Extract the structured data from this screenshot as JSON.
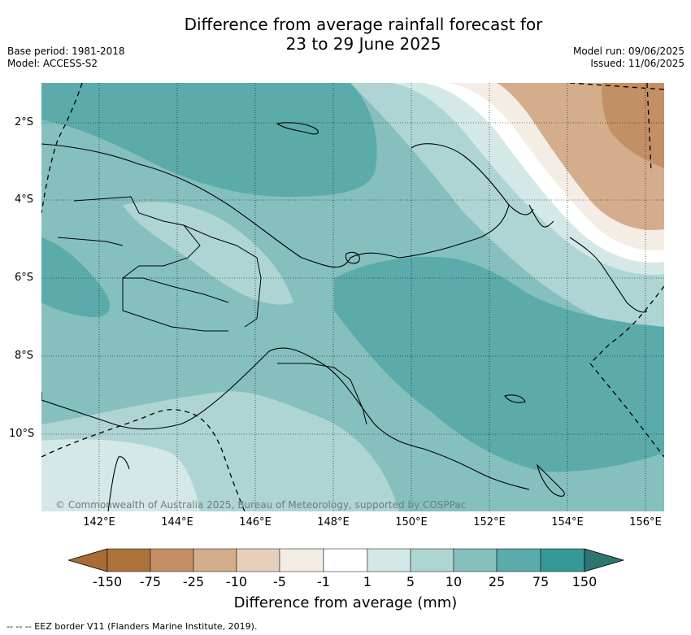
{
  "title_line1": "Difference from average rainfall forecast for",
  "title_line2": "23 to 29 June 2025",
  "base_period": "Base period: 1981-2018",
  "model": "Model: ACCESS-S2",
  "model_run": "Model run: 09/06/2025",
  "issued": "Issued: 11/06/2025",
  "lat_labels": [
    "2°S",
    "4°S",
    "6°S",
    "8°S",
    "10°S"
  ],
  "lon_labels": [
    "142°E",
    "144°E",
    "146°E",
    "148°E",
    "150°E",
    "152°E",
    "154°E",
    "156°E"
  ],
  "credit": "© Commonwealth of Australia 2025, Bureau of Meteorology, supported by COSPPac",
  "colorbar": {
    "ticks": [
      "-150",
      "-75",
      "-25",
      "-10",
      "-5",
      "-1",
      "1",
      "5",
      "10",
      "25",
      "75",
      "150"
    ],
    "colors": [
      "#a86c34",
      "#ab733a",
      "#c39065",
      "#d4ae8c",
      "#e6d0bb",
      "#f4ede6",
      "#ffffff",
      "#d5e8e8",
      "#aed5d4",
      "#85c0bf",
      "#5cabab",
      "#349997",
      "#2e7471"
    ],
    "label": "Difference from average (mm)"
  },
  "footnote": "--  --  -- EEZ border V11 (Flanders Marine Institute, 2019)."
}
